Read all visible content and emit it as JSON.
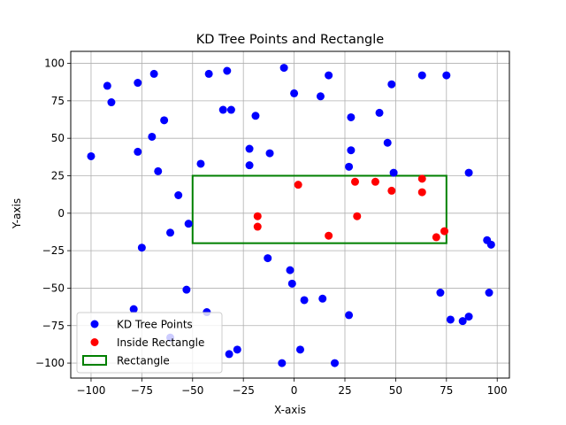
{
  "chart_data": {
    "type": "scatter",
    "title": "KD Tree Points and Rectangle",
    "xlabel": "X-axis",
    "ylabel": "Y-axis",
    "xlim": [
      -110,
      106
    ],
    "ylim": [
      -110,
      108
    ],
    "xticks": [
      -100,
      -75,
      -50,
      -25,
      0,
      25,
      50,
      75,
      100
    ],
    "yticks": [
      -100,
      -75,
      -50,
      -25,
      0,
      25,
      50,
      75,
      100
    ],
    "grid": true,
    "legend_position": "lower-left",
    "rectangle": {
      "x0": -50,
      "y0": -20,
      "x1": 75,
      "y1": 25,
      "color": "#008000"
    },
    "series": [
      {
        "name": "KD Tree Points",
        "color": "#0000ff",
        "points": [
          [
            -100,
            38
          ],
          [
            -92,
            85
          ],
          [
            -90,
            74
          ],
          [
            -77,
            87
          ],
          [
            -69,
            93
          ],
          [
            -64,
            62
          ],
          [
            -70,
            51
          ],
          [
            -77,
            41
          ],
          [
            -67,
            28
          ],
          [
            -57,
            12
          ],
          [
            -61,
            -13
          ],
          [
            -52,
            -7
          ],
          [
            -75,
            -23
          ],
          [
            -53,
            -51
          ],
          [
            -79,
            -64
          ],
          [
            -46,
            33
          ],
          [
            -42,
            93
          ],
          [
            -33,
            95
          ],
          [
            -35,
            69
          ],
          [
            -31,
            69
          ],
          [
            -19,
            65
          ],
          [
            -22,
            43
          ],
          [
            -22,
            32
          ],
          [
            -12,
            40
          ],
          [
            -5,
            97
          ],
          [
            0,
            80
          ],
          [
            13,
            78
          ],
          [
            17,
            92
          ],
          [
            28,
            64
          ],
          [
            28,
            42
          ],
          [
            27,
            31
          ],
          [
            42,
            67
          ],
          [
            46,
            47
          ],
          [
            48,
            86
          ],
          [
            49,
            27
          ],
          [
            63,
            92
          ],
          [
            75,
            92
          ],
          [
            86,
            27
          ],
          [
            -13,
            -30
          ],
          [
            -2,
            -38
          ],
          [
            -1,
            -47
          ],
          [
            5,
            -58
          ],
          [
            14,
            -57
          ],
          [
            27,
            -68
          ],
          [
            -43,
            -66
          ],
          [
            -61,
            -83
          ],
          [
            -32,
            -94
          ],
          [
            -28,
            -91
          ],
          [
            -6,
            -100
          ],
          [
            3,
            -91
          ],
          [
            20,
            -100
          ],
          [
            72,
            -53
          ],
          [
            77,
            -71
          ],
          [
            83,
            -72
          ],
          [
            86,
            -69
          ],
          [
            95,
            -18
          ],
          [
            97,
            -21
          ],
          [
            96,
            -53
          ]
        ]
      },
      {
        "name": "Inside Rectangle",
        "color": "#ff0000",
        "points": [
          [
            2,
            19
          ],
          [
            30,
            21
          ],
          [
            40,
            21
          ],
          [
            48,
            15
          ],
          [
            63,
            23
          ],
          [
            63,
            14
          ],
          [
            -18,
            -2
          ],
          [
            -18,
            -9
          ],
          [
            31,
            -2
          ],
          [
            17,
            -15
          ],
          [
            70,
            -16
          ],
          [
            74,
            -12
          ]
        ]
      }
    ],
    "legend": [
      {
        "label": "KD Tree Points",
        "marker": "dot",
        "color": "#0000ff"
      },
      {
        "label": "Inside Rectangle",
        "marker": "dot",
        "color": "#ff0000"
      },
      {
        "label": "Rectangle",
        "marker": "box",
        "color": "#008000"
      }
    ]
  }
}
